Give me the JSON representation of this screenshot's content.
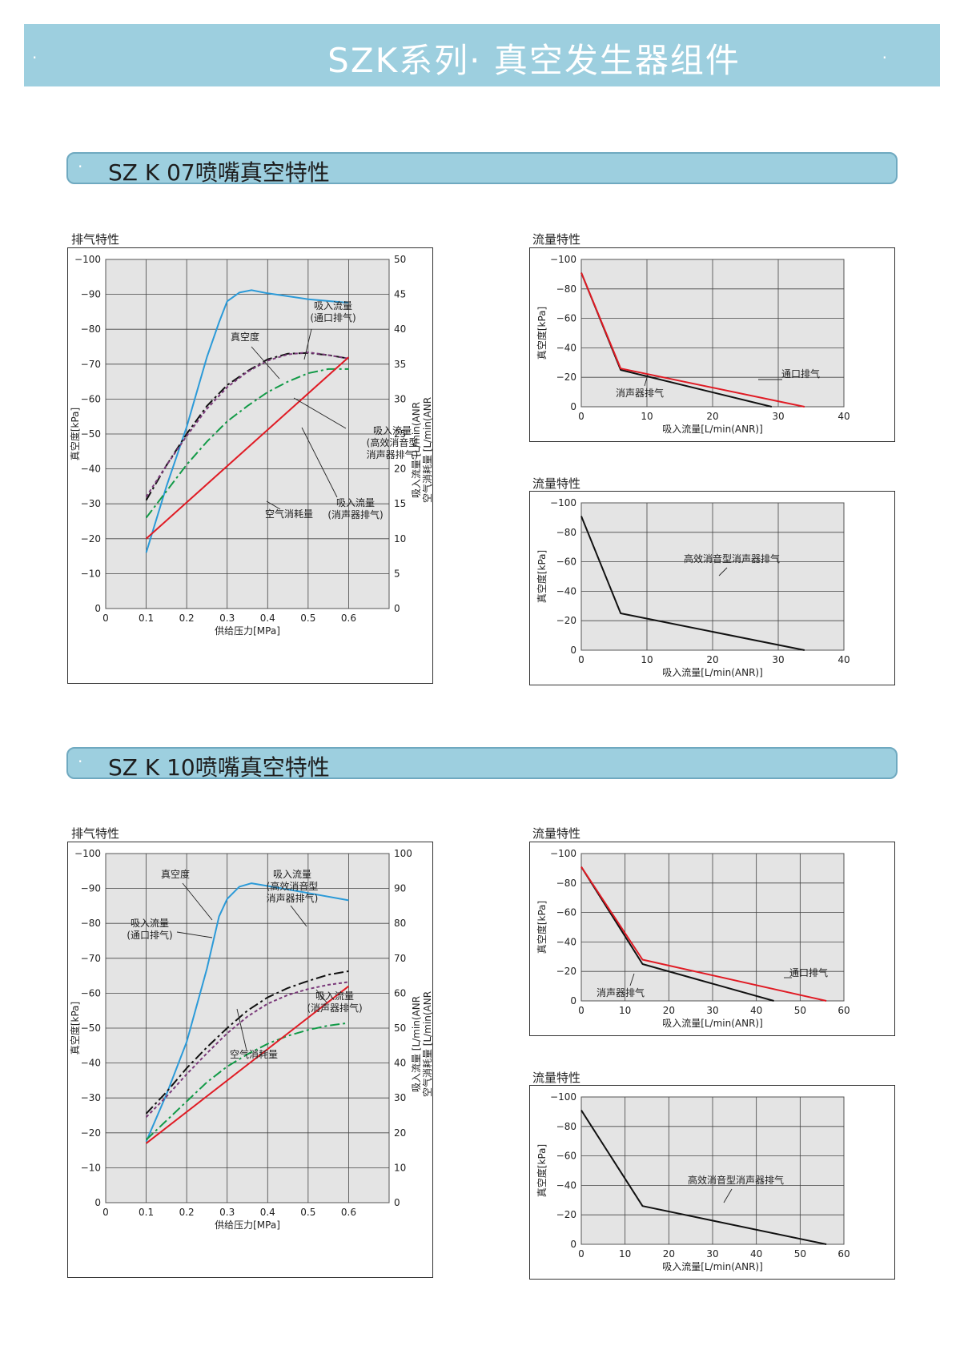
{
  "banner": {
    "title": "SZK系列· 真空发生器组件",
    "dot": "·"
  },
  "sections": [
    {
      "title": "SZ K 07喷嘴真空特性",
      "dot": "·"
    },
    {
      "title": "SZ K 10喷嘴真空特性",
      "dot": "·"
    }
  ],
  "panel_titles": {
    "k07_exhaust": "排气特性",
    "k07_flow1": "流量特性",
    "k07_flow2": "流量特性",
    "k10_exhaust": "排气特性",
    "k10_flow1": "流量特性",
    "k10_flow2": "流量特性"
  },
  "colors": {
    "banner": "#9dcfdf",
    "plot_bg": "#e4e4e4",
    "blue": "#2b9ad8",
    "red": "#e01b24",
    "green": "#129a47",
    "black": "#111111",
    "purple": "#7a3a7a"
  },
  "chart_data": [
    {
      "id": "k07_exhaust",
      "type": "line",
      "xlabel": "供给压力[MPa]",
      "ylabel": "真空度[kPa]",
      "y2label_1": "吸入流量 [L/min(ANR",
      "y2label_2": "空气消耗量 [L/min(ANR",
      "xlim": [
        0,
        0.7
      ],
      "ylim": [
        0,
        -100
      ],
      "y2lim": [
        0,
        50
      ],
      "xticks": [
        "0",
        "0.1",
        "0.2",
        "0.3",
        "0.4",
        "0.5",
        "0.6"
      ],
      "yticks": [
        "0",
        "−10",
        "−20",
        "−30",
        "−40",
        "−50",
        "−60",
        "−70",
        "−80",
        "−90",
        "−100"
      ],
      "y2ticks": [
        "0",
        "5",
        "10",
        "15",
        "20",
        "25",
        "30",
        "35",
        "40",
        "45",
        "50"
      ],
      "series": [
        {
          "name": "真空度",
          "axis": "left",
          "color": "blue",
          "style": "solid",
          "x": [
            0.1,
            0.15,
            0.2,
            0.25,
            0.28,
            0.3,
            0.33,
            0.36,
            0.4,
            0.5,
            0.6
          ],
          "y": [
            -16,
            -35,
            -52,
            -72,
            -82,
            -88,
            -90.5,
            -91.2,
            -90.3,
            -88.6,
            -87.6
          ]
        },
        {
          "name": "吸入流量(通口排气)",
          "axis": "right",
          "color": "black",
          "style": "dashdot",
          "x": [
            0.1,
            0.15,
            0.2,
            0.25,
            0.3,
            0.35,
            0.4,
            0.45,
            0.5,
            0.55,
            0.6
          ],
          "y": [
            15.5,
            20.5,
            25,
            29,
            32,
            34,
            35.7,
            36.5,
            36.6,
            36.3,
            35.8
          ]
        },
        {
          "name": "吸入流量(高效消音型消声器排气)",
          "axis": "right",
          "color": "purple",
          "style": "dashed",
          "x": [
            0.1,
            0.15,
            0.2,
            0.25,
            0.3,
            0.35,
            0.4,
            0.45,
            0.5,
            0.55,
            0.6
          ],
          "y": [
            16,
            20.5,
            24.7,
            28.6,
            31.7,
            33.9,
            35.5,
            36.4,
            36.7,
            36.3,
            35.8
          ]
        },
        {
          "name": "吸入流量(消声器排气)",
          "axis": "right",
          "color": "green",
          "style": "dashdot",
          "x": [
            0.1,
            0.15,
            0.2,
            0.25,
            0.3,
            0.35,
            0.4,
            0.45,
            0.5,
            0.55,
            0.6
          ],
          "y": [
            13,
            16.8,
            20.6,
            23.9,
            26.8,
            29,
            31,
            32.5,
            33.7,
            34.3,
            34.3
          ]
        },
        {
          "name": "空气消耗量",
          "axis": "right",
          "color": "red",
          "style": "solid",
          "x": [
            0.1,
            0.6
          ],
          "y": [
            10,
            36
          ]
        }
      ],
      "annotations": [
        {
          "lines": [
            "吸入流量",
            "(通口排气)"
          ]
        },
        {
          "lines": [
            "真空度"
          ]
        },
        {
          "lines": [
            "吸入流量",
            "(高效消音型",
            "消声器排气)"
          ]
        },
        {
          "lines": [
            "吸入流量",
            "(消声器排气)"
          ]
        },
        {
          "lines": [
            "空气消耗量"
          ]
        }
      ]
    },
    {
      "id": "k07_flow1",
      "type": "line",
      "xlabel": "吸入流量[L/min(ANR)]",
      "ylabel": "真空度[kPa]",
      "xlim": [
        0,
        40
      ],
      "ylim": [
        0,
        -100
      ],
      "xticks": [
        "0",
        "10",
        "20",
        "30",
        "40"
      ],
      "yticks": [
        "0",
        "−20",
        "−40",
        "−60",
        "−80",
        "−100"
      ],
      "series": [
        {
          "name": "消声器排气",
          "color": "black",
          "style": "solid",
          "x": [
            0,
            6,
            29
          ],
          "y": [
            -91,
            -25,
            0
          ]
        },
        {
          "name": "通口排气",
          "color": "red",
          "style": "solid",
          "x": [
            0,
            6,
            34
          ],
          "y": [
            -91,
            -26,
            0
          ]
        }
      ],
      "annotations": [
        {
          "lines": [
            "通口排气"
          ]
        },
        {
          "lines": [
            "消声器排气"
          ]
        }
      ]
    },
    {
      "id": "k07_flow2",
      "type": "line",
      "xlabel": "吸入流量[L/min(ANR)]",
      "ylabel": "真空度[kPa]",
      "xlim": [
        0,
        40
      ],
      "ylim": [
        0,
        -100
      ],
      "xticks": [
        "0",
        "10",
        "20",
        "30",
        "40"
      ],
      "yticks": [
        "0",
        "−20",
        "−40",
        "−60",
        "−80",
        "−100"
      ],
      "series": [
        {
          "name": "高效消音型消声器排气",
          "color": "black",
          "style": "solid",
          "x": [
            0,
            6,
            34
          ],
          "y": [
            -91,
            -25,
            0
          ]
        }
      ],
      "annotations": [
        {
          "lines": [
            "高效消音型消声器排气"
          ]
        }
      ]
    },
    {
      "id": "k10_exhaust",
      "type": "line",
      "xlabel": "供给压力[MPa]",
      "ylabel": "真空度[kPa]",
      "y2label_1": "吸入流量 [L/min(ANR",
      "y2label_2": "空气消耗量 [L/min(ANR",
      "xlim": [
        0,
        0.7
      ],
      "ylim": [
        0,
        -100
      ],
      "y2lim": [
        0,
        100
      ],
      "xticks": [
        "0",
        "0.1",
        "0.2",
        "0.3",
        "0.4",
        "0.5",
        "0.6"
      ],
      "yticks": [
        "0",
        "−10",
        "−20",
        "−30",
        "−40",
        "−50",
        "−60",
        "−70",
        "−80",
        "−90",
        "−100"
      ],
      "y2ticks": [
        "0",
        "10",
        "20",
        "30",
        "40",
        "50",
        "60",
        "70",
        "80",
        "90",
        "100"
      ],
      "series": [
        {
          "name": "真空度",
          "axis": "left",
          "color": "blue",
          "style": "solid",
          "x": [
            0.1,
            0.15,
            0.2,
            0.25,
            0.28,
            0.3,
            0.33,
            0.36,
            0.4,
            0.5,
            0.6
          ],
          "y": [
            -17.5,
            -31,
            -46,
            -67,
            -82,
            -87,
            -90.5,
            -91.5,
            -90.7,
            -88.7,
            -86.6
          ]
        },
        {
          "name": "吸入流量(通口排气)",
          "axis": "right",
          "color": "black",
          "style": "dashdot",
          "x": [
            0.1,
            0.15,
            0.2,
            0.25,
            0.3,
            0.35,
            0.4,
            0.45,
            0.5,
            0.55,
            0.6
          ],
          "y": [
            25.5,
            31.7,
            38.5,
            44.5,
            50,
            55,
            58.8,
            61.5,
            63.5,
            65.3,
            66.3
          ]
        },
        {
          "name": "吸入流量(高效消音型消声器排气)",
          "axis": "right",
          "color": "purple",
          "style": "dashed",
          "x": [
            0.1,
            0.15,
            0.2,
            0.25,
            0.3,
            0.35,
            0.4,
            0.45,
            0.5,
            0.55,
            0.6
          ],
          "y": [
            24.5,
            30.4,
            36.8,
            42.8,
            48.5,
            53.3,
            57,
            59.5,
            61.2,
            62.4,
            63.2
          ]
        },
        {
          "name": "吸入流量(消声器排气)",
          "axis": "right",
          "color": "green",
          "style": "dashdot",
          "x": [
            0.1,
            0.15,
            0.2,
            0.25,
            0.3,
            0.35,
            0.4,
            0.45,
            0.5,
            0.55,
            0.6
          ],
          "y": [
            18,
            23.5,
            29,
            34.5,
            39,
            42.5,
            45.5,
            47.8,
            49.5,
            50.7,
            51.5
          ]
        },
        {
          "name": "空气消耗量",
          "axis": "right",
          "color": "red",
          "style": "solid",
          "x": [
            0.1,
            0.6
          ],
          "y": [
            17,
            62
          ]
        }
      ],
      "annotations": [
        {
          "lines": [
            "真空度"
          ]
        },
        {
          "lines": [
            "吸入流量",
            "(高效消音型",
            "消声器排气)"
          ]
        },
        {
          "lines": [
            "吸入流量",
            "(通口排气)"
          ]
        },
        {
          "lines": [
            "吸入流量",
            "(消声器排气)"
          ]
        },
        {
          "lines": [
            "空气消耗量"
          ]
        }
      ]
    },
    {
      "id": "k10_flow1",
      "type": "line",
      "xlabel": "吸入流量[L/min(ANR)]",
      "ylabel": "真空度[kPa]",
      "xlim": [
        0,
        60
      ],
      "ylim": [
        0,
        -100
      ],
      "xticks": [
        "0",
        "10",
        "20",
        "30",
        "40",
        "50",
        "60"
      ],
      "yticks": [
        "0",
        "−20",
        "−40",
        "−60",
        "−80",
        "−100"
      ],
      "series": [
        {
          "name": "消声器排气",
          "color": "black",
          "style": "solid",
          "x": [
            0,
            14,
            44
          ],
          "y": [
            -91,
            -25,
            0
          ]
        },
        {
          "name": "通口排气",
          "color": "red",
          "style": "solid",
          "x": [
            0,
            14,
            56
          ],
          "y": [
            -91,
            -28,
            0
          ]
        }
      ],
      "annotations": [
        {
          "lines": [
            "通口排气"
          ]
        },
        {
          "lines": [
            "消声器排气"
          ]
        }
      ]
    },
    {
      "id": "k10_flow2",
      "type": "line",
      "xlabel": "吸入流量[L/min(ANR)]",
      "ylabel": "真空度[kPa]",
      "xlim": [
        0,
        60
      ],
      "ylim": [
        0,
        -100
      ],
      "xticks": [
        "0",
        "10",
        "20",
        "30",
        "40",
        "50",
        "60"
      ],
      "yticks": [
        "0",
        "−20",
        "−40",
        "−60",
        "−80",
        "−100"
      ],
      "series": [
        {
          "name": "高效消音型消声器排气",
          "color": "black",
          "style": "solid",
          "x": [
            0,
            14,
            56
          ],
          "y": [
            -91,
            -26,
            0
          ]
        }
      ],
      "annotations": [
        {
          "lines": [
            "高效消音型消声器排气"
          ]
        }
      ]
    }
  ]
}
